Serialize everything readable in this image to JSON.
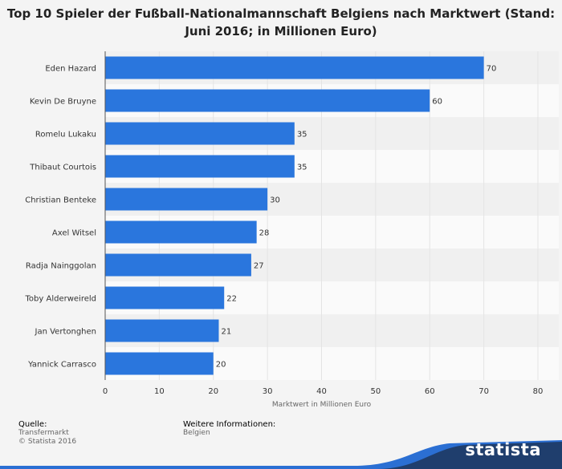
{
  "footer": {
    "source_label": "Quelle:",
    "source_line1": "Transfermarkt",
    "source_line2": "© Statista 2016",
    "info_label": "Weitere Informationen:",
    "info_value": "Belgien"
  },
  "brand": {
    "logo_text": "statista",
    "accent": "#1f3e6d",
    "wave": "#2b6fd3"
  },
  "colors": {
    "bar": "#2a76dd",
    "band_dark": "#f0f0f0",
    "band_light": "#fafafa",
    "grid": "#e4e4e4"
  },
  "chart_data": {
    "type": "bar",
    "orientation": "horizontal",
    "title": "Top 10 Spieler der Fußball-Nationalmannschaft Belgiens nach Marktwert (Stand: Juni 2016; in Millionen Euro)",
    "xlabel": "Marktwert in Millionen Euro",
    "ylabel": "",
    "xlim": [
      0,
      80
    ],
    "ticks": [
      0,
      10,
      20,
      30,
      40,
      50,
      60,
      70,
      80
    ],
    "grid": true,
    "categories": [
      "Eden Hazard",
      "Kevin De Bruyne",
      "Romelu Lukaku",
      "Thibaut Courtois",
      "Christian Benteke",
      "Axel Witsel",
      "Radja Nainggolan",
      "Toby Alderweireld",
      "Jan Vertonghen",
      "Yannick Carrasco"
    ],
    "values": [
      70,
      60,
      35,
      35,
      30,
      28,
      27,
      22,
      21,
      20
    ]
  }
}
